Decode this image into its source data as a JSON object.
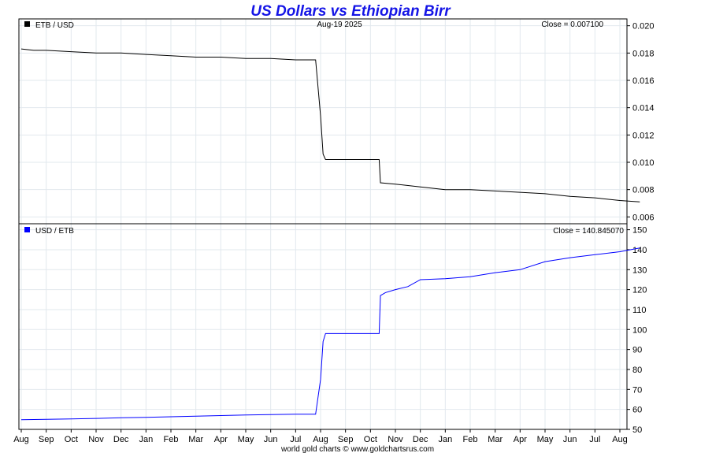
{
  "title": "US Dollars vs Ethiopian Birr",
  "date_label": "Aug-19  2025",
  "footer": "world gold charts © www.goldchartsrus.com",
  "colors": {
    "title": "#1414e6",
    "etb_usd_line": "#000000",
    "usd_etb_line": "#0000ff",
    "grid": "#e2e8ee"
  },
  "x_axis_labels": [
    "Aug",
    "Sep",
    "Oct",
    "Nov",
    "Dec",
    "Jan",
    "Feb",
    "Mar",
    "Apr",
    "May",
    "Jun",
    "Jul",
    "Aug",
    "Sep",
    "Oct",
    "Nov",
    "Dec",
    "Jan",
    "Feb",
    "Mar",
    "Apr",
    "May",
    "Jun",
    "Jul",
    "Aug"
  ],
  "chart_data": [
    {
      "type": "line",
      "legend": "ETB / USD",
      "close_label": "Close = 0.007100",
      "ylim": [
        0.0055,
        0.0205
      ],
      "y_ticks": [
        "0.020",
        "0.018",
        "0.016",
        "0.014",
        "0.012",
        "0.010",
        "0.008",
        "0.006"
      ],
      "y_tick_values": [
        0.02,
        0.018,
        0.016,
        0.014,
        0.012,
        0.01,
        0.008,
        0.006
      ],
      "grid": true,
      "series": [
        {
          "name": "ETB / USD",
          "x": [
            0,
            0.5,
            1,
            2,
            3,
            4,
            5,
            6,
            7,
            8,
            9,
            10,
            11,
            11.5,
            11.8,
            12.0,
            12.1,
            12.2,
            12.5,
            13,
            14,
            14.35,
            14.4,
            15,
            16,
            17,
            18,
            19,
            20,
            21,
            22,
            23,
            24,
            24.8
          ],
          "y": [
            0.0183,
            0.0182,
            0.0182,
            0.0181,
            0.018,
            0.018,
            0.0179,
            0.0178,
            0.0177,
            0.0177,
            0.0176,
            0.0176,
            0.0175,
            0.0175,
            0.0175,
            0.0134,
            0.0106,
            0.0102,
            0.0102,
            0.0102,
            0.0102,
            0.0102,
            0.0085,
            0.0084,
            0.0082,
            0.008,
            0.008,
            0.0079,
            0.0078,
            0.0077,
            0.0075,
            0.0074,
            0.0072,
            0.0071
          ]
        }
      ]
    },
    {
      "type": "line",
      "legend": "USD / ETB",
      "close_label": "Close = 140.845070",
      "ylim": [
        50,
        153
      ],
      "y_ticks": [
        "150",
        "140",
        "130",
        "120",
        "110",
        "100",
        "90",
        "80",
        "70",
        "60",
        "50"
      ],
      "y_tick_values": [
        150,
        140,
        130,
        120,
        110,
        100,
        90,
        80,
        70,
        60,
        50
      ],
      "grid": true,
      "series": [
        {
          "name": "USD / ETB",
          "x": [
            0,
            1,
            2,
            3,
            4,
            5,
            6,
            7,
            8,
            9,
            10,
            11,
            11.8,
            12.0,
            12.1,
            12.2,
            12.5,
            13,
            14,
            14.35,
            14.4,
            14.6,
            15,
            15.5,
            16,
            17,
            18,
            19,
            20,
            21,
            22,
            23,
            24,
            24.8
          ],
          "y": [
            54.8,
            55.0,
            55.2,
            55.5,
            55.8,
            56.0,
            56.3,
            56.6,
            56.9,
            57.2,
            57.4,
            57.6,
            57.6,
            75.0,
            94.0,
            98.0,
            98.0,
            98.0,
            98.0,
            98.0,
            117.0,
            118.5,
            120.0,
            121.5,
            125.0,
            125.5,
            126.5,
            128.5,
            130.0,
            134.0,
            136.0,
            137.5,
            139.0,
            140.845
          ]
        }
      ]
    }
  ]
}
